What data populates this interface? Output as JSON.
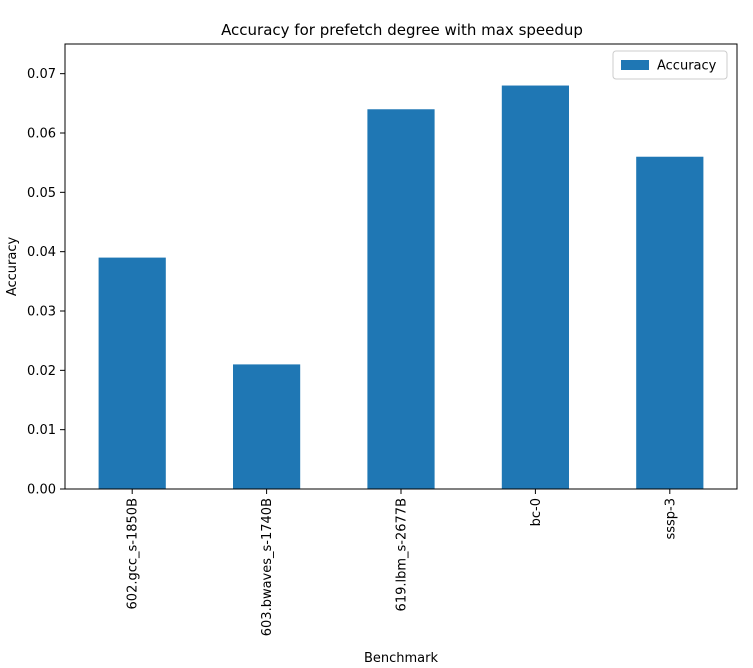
{
  "chart_data": {
    "type": "bar",
    "title": "Accuracy for prefetch degree with max speedup",
    "xlabel": "Benchmark",
    "ylabel": "Accuracy",
    "categories": [
      "602.gcc_s-1850B",
      "603.bwaves_s-1740B",
      "619.lbm_s-2677B",
      "bc-0",
      "sssp-3"
    ],
    "series": [
      {
        "name": "Accuracy",
        "values": [
          0.039,
          0.021,
          0.064,
          0.068,
          0.056
        ],
        "color": "#1f77b4"
      }
    ],
    "ylim": [
      0,
      0.075
    ],
    "yticks": [
      0.0,
      0.01,
      0.02,
      0.03,
      0.04,
      0.05,
      0.06,
      0.07
    ],
    "ytick_labels": [
      "0.00",
      "0.01",
      "0.02",
      "0.03",
      "0.04",
      "0.05",
      "0.06",
      "0.07"
    ],
    "grid": false,
    "legend_position": "top-right"
  }
}
